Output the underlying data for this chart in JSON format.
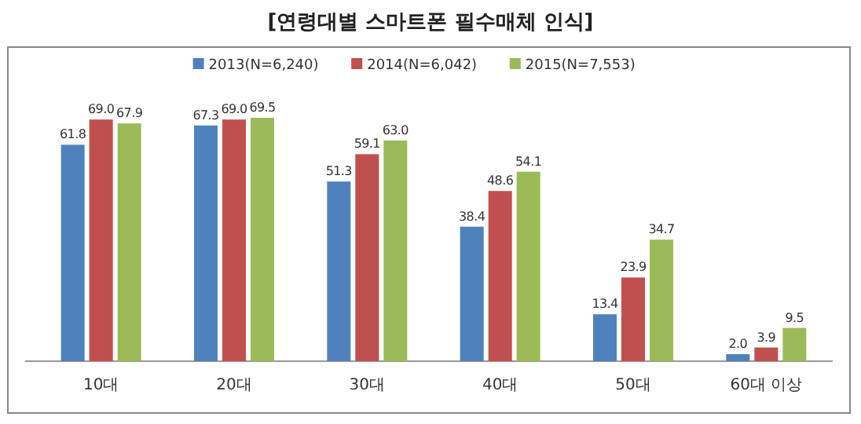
{
  "chart_data": {
    "type": "bar",
    "title": "[연령대별 스마트폰 필수매체 인식]",
    "categories": [
      "10대",
      "20대",
      "30대",
      "40대",
      "50대",
      "60대 이상"
    ],
    "series": [
      {
        "name": "2013(N=6,240)",
        "color": "#4f81bd",
        "values": [
          61.8,
          67.3,
          51.3,
          38.4,
          13.4,
          2.0
        ],
        "value_labels": [
          "61.8",
          "67.3",
          "51.3",
          "38.4",
          "13.4",
          "2.0"
        ]
      },
      {
        "name": "2014(N=6,042)",
        "color": "#c0504d",
        "values": [
          69.0,
          69.0,
          59.1,
          48.6,
          23.9,
          3.9
        ],
        "value_labels": [
          "69.0",
          "69.0",
          "59.1",
          "48.6",
          "23.9",
          "3.9"
        ]
      },
      {
        "name": "2015(N=7,553)",
        "color": "#9bbb59",
        "values": [
          67.9,
          69.5,
          63.0,
          54.1,
          34.7,
          9.5
        ],
        "value_labels": [
          "67.9",
          "69.5",
          "63.0",
          "54.1",
          "34.7",
          "9.5"
        ]
      }
    ],
    "legend": "top"
  }
}
